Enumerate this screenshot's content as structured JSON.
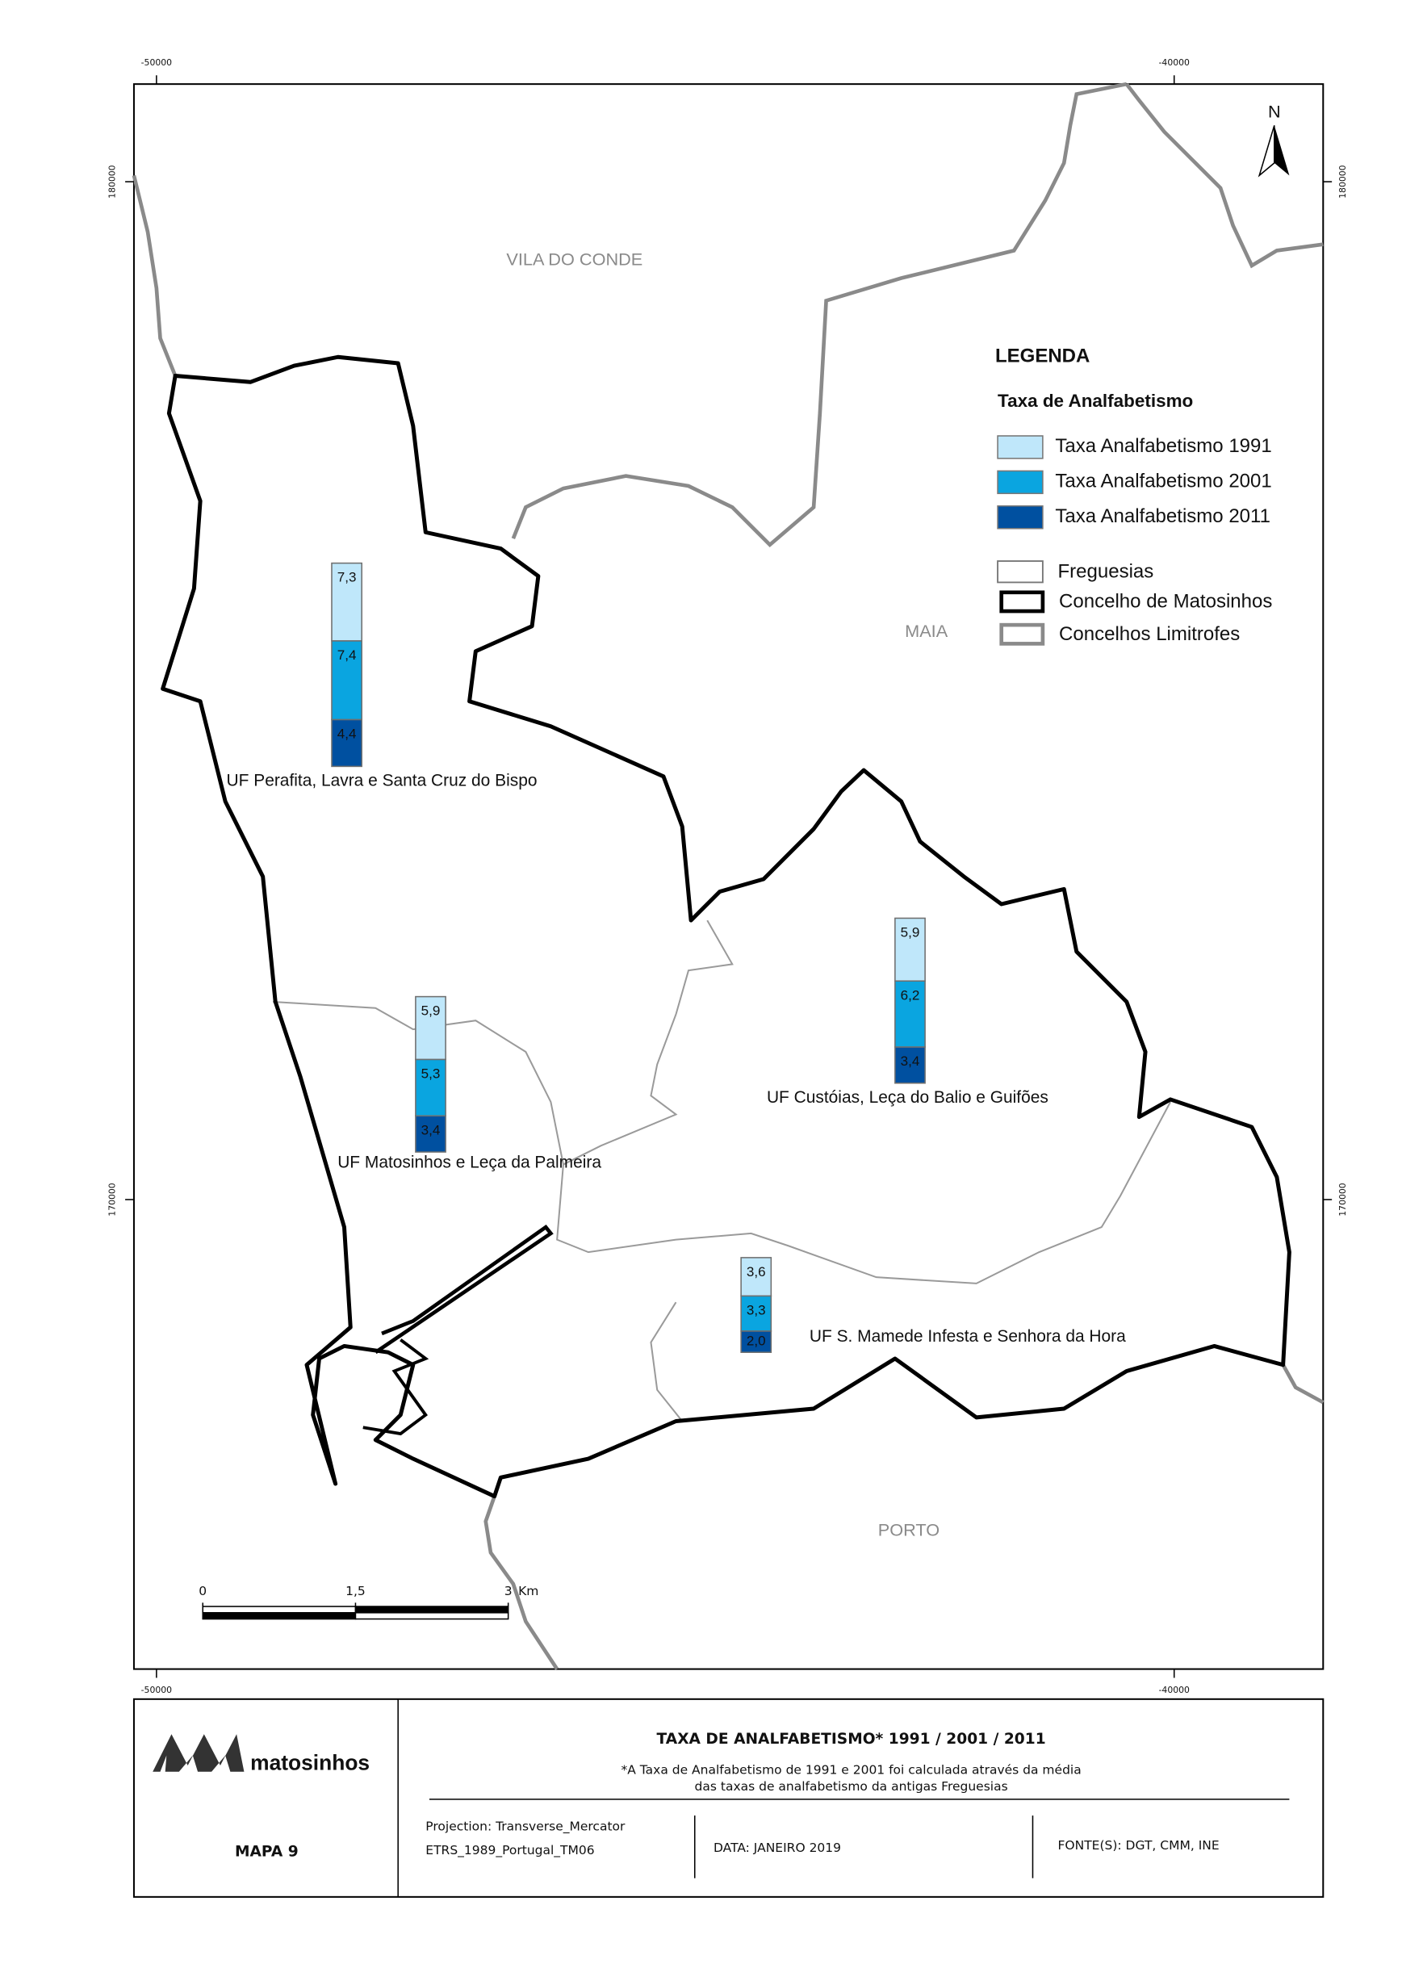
{
  "chart_data": {
    "type": "stacked_bar",
    "categories": [
      "UF Perafita, Lavra e Santa Cruz do Bispo",
      "UF Matosinhos e Leça da Palmeira",
      "UF Custóias, Leça do Balio e Guifões",
      "UF S. Mamede Infesta e Senhora da Hora"
    ],
    "series": [
      {
        "name": "Taxa Analfabetismo 1991",
        "color": "#bfe7fa",
        "values": [
          7.3,
          5.9,
          5.9,
          3.6
        ],
        "value_labels": [
          "7,3",
          "5,9",
          "5,9",
          "3,6"
        ]
      },
      {
        "name": "Taxa Analfabetismo 2001",
        "color": "#0aa5e0",
        "values": [
          7.4,
          5.3,
          6.2,
          3.3
        ],
        "value_labels": [
          "7,4",
          "5,3",
          "6,2",
          "3,3"
        ]
      },
      {
        "name": "Taxa Analfabetismo 2011",
        "color": "#0050a0",
        "values": [
          4.4,
          3.4,
          3.4,
          2.0
        ],
        "value_labels": [
          "4,4",
          "3,4",
          "3,4",
          "2,0"
        ]
      }
    ]
  },
  "map": {
    "eastings": [
      -50000,
      -40000
    ],
    "northings": [
      180000,
      170000
    ],
    "places": [
      "VILA DO CONDE",
      "MAIA",
      "PORTO"
    ],
    "north": "N",
    "scale_ticks": [
      0,
      {
        "value": 1.5,
        "label": "1,5"
      },
      3
    ],
    "scale_unit": "Km"
  },
  "legend": {
    "title": "LEGENDA",
    "subtitle": "Taxa de Analfabetismo",
    "layers": [
      "Freguesias",
      "Concelho de Matosinhos",
      "Concelhos Limitrofes"
    ]
  },
  "footer": {
    "logo": "matosinhos",
    "map_number": "MAPA 9",
    "title": "TAXA DE ANALFABETISMO* 1991 / 2001 / 2011",
    "note": [
      "*A Taxa de Analfabetismo de 1991 e 2001 foi calculada através da média",
      "das taxas de analfabetismo da antigas Freguesias"
    ],
    "projection": [
      "Projection: Transverse_Mercator",
      "ETRS_1989_Portugal_TM06"
    ],
    "date": "DATA: JANEIRO 2019",
    "sources": "FONTE(S): DGT, CMM, INE"
  }
}
